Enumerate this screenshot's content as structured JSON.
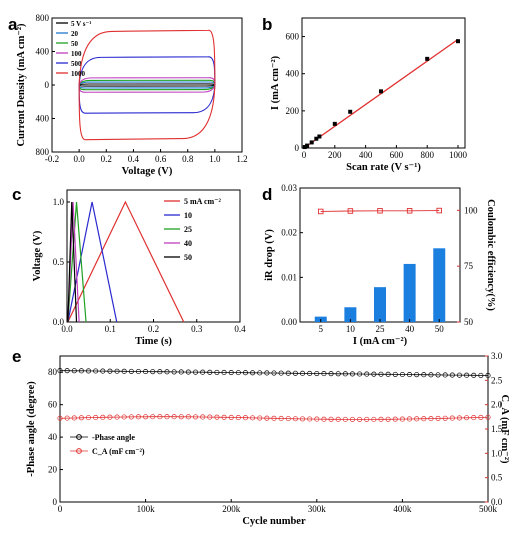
{
  "chart_data": [
    {
      "panel": "a",
      "type": "line",
      "xlabel": "Voltage (V)",
      "ylabel": "Current Density (mA cm⁻²)",
      "xlim": [
        -0.2,
        1.2
      ],
      "ylim": [
        -800,
        800
      ],
      "xticks": [
        "-0.2",
        "0.0",
        "0.2",
        "0.4",
        "0.6",
        "0.8",
        "1.0",
        "1.2"
      ],
      "yticks": [
        "800",
        "400",
        "0",
        "400",
        "800"
      ],
      "legend_position": "top-left",
      "series": [
        {
          "name": "5 V s⁻¹",
          "color": "#000000",
          "upper": 12,
          "lower": -12
        },
        {
          "name": "20",
          "color": "#1f77d0",
          "upper": 35,
          "lower": -35
        },
        {
          "name": "50",
          "color": "#20a020",
          "upper": 55,
          "lower": -55
        },
        {
          "name": "100",
          "color": "#c040c0",
          "upper": 85,
          "lower": -85
        },
        {
          "name": "500",
          "color": "#2a2ad0",
          "upper": 330,
          "lower": -330
        },
        {
          "name": "1000",
          "color": "#e03030",
          "upper": 640,
          "lower": -640
        }
      ]
    },
    {
      "panel": "b",
      "type": "scatter",
      "xlabel": "Scan rate (V s⁻¹)",
      "ylabel": "I (mA cm⁻²)",
      "xlim": [
        0,
        1000
      ],
      "ylim": [
        0,
        700
      ],
      "xticks": [
        "0",
        "200",
        "400",
        "600",
        "800",
        "1000"
      ],
      "yticks": [
        "0",
        "200",
        "400",
        "600"
      ],
      "x": [
        5,
        20,
        50,
        80,
        100,
        200,
        300,
        500,
        800,
        1000
      ],
      "y": [
        5,
        13,
        30,
        50,
        62,
        130,
        195,
        305,
        480,
        575
      ],
      "fit": [
        [
          0,
          0
        ],
        [
          1000,
          585
        ]
      ],
      "fit_color": "#e03030"
    },
    {
      "panel": "c",
      "type": "line",
      "xlabel": "Time (s)",
      "ylabel": "Voltage (V)",
      "xlim": [
        0,
        0.4
      ],
      "ylim": [
        0,
        1.1
      ],
      "xticks": [
        "0.0",
        "0.1",
        "0.2",
        "0.3",
        "0.4"
      ],
      "yticks": [
        "0.0",
        "0.5",
        "1.0"
      ],
      "legend_position": "top-right",
      "series": [
        {
          "name": "5 mA cm⁻²",
          "color": "#e03030",
          "peak_t": 0.135,
          "end_t": 0.27
        },
        {
          "name": "10",
          "color": "#2a2ad0",
          "peak_t": 0.058,
          "end_t": 0.115
        },
        {
          "name": "25",
          "color": "#20a020",
          "peak_t": 0.022,
          "end_t": 0.044
        },
        {
          "name": "40",
          "color": "#c040c0",
          "peak_t": 0.014,
          "end_t": 0.028
        },
        {
          "name": "50",
          "color": "#000000",
          "peak_t": 0.011,
          "end_t": 0.022
        }
      ]
    },
    {
      "panel": "d",
      "type": "bar",
      "xlabel": "I (mA cm⁻²)",
      "ylabel": "iR drop (V)",
      "ylabel_right": "Coulombic efficiency(%)",
      "categories": [
        "5",
        "10",
        "25",
        "40",
        "50"
      ],
      "values": [
        0.0012,
        0.0033,
        0.0078,
        0.013,
        0.0165
      ],
      "ylim": [
        0,
        0.03
      ],
      "yticks": [
        "0.00",
        "0.01",
        "0.02",
        "0.03"
      ],
      "ylim_right": [
        50,
        110
      ],
      "yticks_right": [
        "50",
        "75",
        "100"
      ],
      "ce_values": [
        99.5,
        99.7,
        99.8,
        99.8,
        99.9
      ],
      "bar_color": "#1b7fe0",
      "ce_color": "#e03030"
    },
    {
      "panel": "e",
      "type": "line",
      "xlabel": "Cycle number",
      "ylabel": "-Phase angle (degree)",
      "ylabel_right": "C_A (mF cm⁻²)",
      "xlim": [
        0,
        500000
      ],
      "xticks": [
        "0",
        "100k",
        "200k",
        "300k",
        "400k",
        "500k"
      ],
      "ylim": [
        0,
        90
      ],
      "yticks": [
        "0",
        "20",
        "40",
        "60",
        "80"
      ],
      "ylim_right": [
        0,
        3.0
      ],
      "yticks_right": [
        "0.0",
        "0.5",
        "1.0",
        "1.5",
        "2.0",
        "2.5",
        "3.0"
      ],
      "legend_position": "bottom-left",
      "series": [
        {
          "name": "-Phase angle",
          "color": "#000000",
          "axis": "left",
          "start": 81,
          "end": 78
        },
        {
          "name": "C_A (mF cm⁻²)",
          "color": "#e03030",
          "axis": "right",
          "start": 1.72,
          "end": 1.73
        }
      ]
    }
  ],
  "panel_labels": [
    "a",
    "b",
    "c",
    "d",
    "e"
  ]
}
